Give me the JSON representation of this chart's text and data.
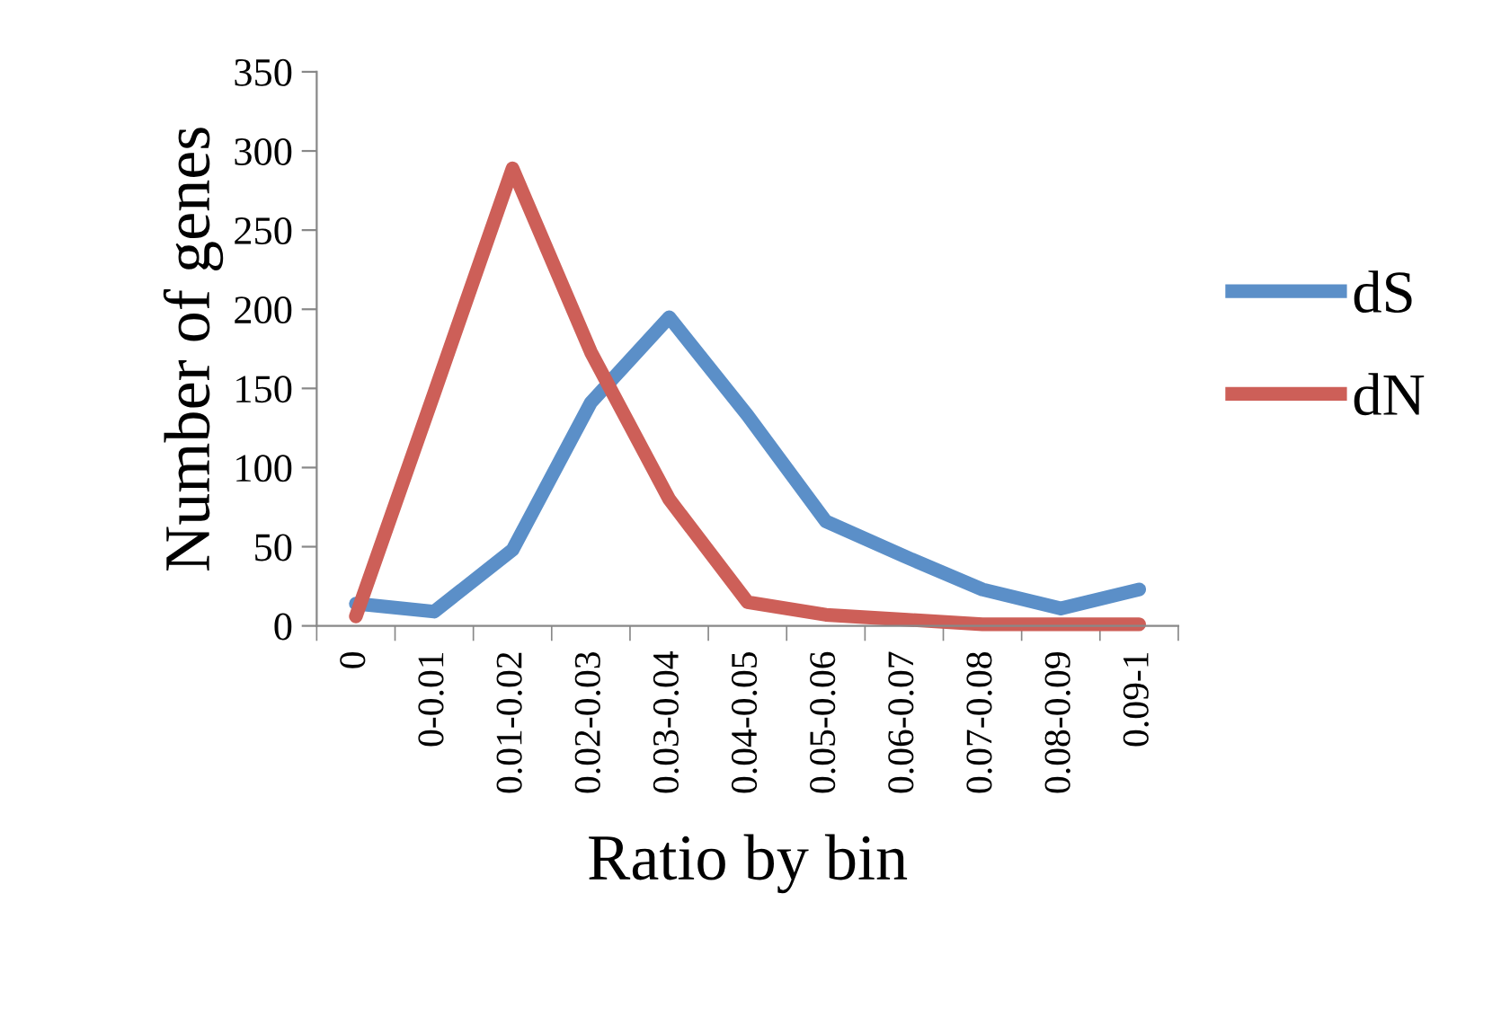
{
  "chart_data": {
    "type": "line",
    "xlabel": "Ratio by bin",
    "ylabel": "Number of genes",
    "categories": [
      "0",
      "0-0.01",
      "0.01-0.02",
      "0.02-0.03",
      "0.03-0.04",
      "0.04-0.05",
      "0.05-0.06",
      "0.06-0.07",
      "0.07-0.08",
      "0.08-0.09",
      "0.09-1"
    ],
    "series": [
      {
        "name": "dS",
        "color": "#5b8fc8",
        "values": [
          14,
          9,
          48,
          141,
          195,
          133,
          66,
          44,
          23,
          11,
          23
        ]
      },
      {
        "name": "dN",
        "color": "#cd5f58",
        "values": [
          6,
          147,
          289,
          173,
          80,
          15,
          7,
          4,
          1,
          1,
          1
        ]
      }
    ],
    "ylim": [
      0,
      350
    ],
    "yticks": [
      0,
      50,
      100,
      150,
      200,
      250,
      300,
      350
    ],
    "grid": false,
    "legend": "right",
    "marker": "none",
    "line_style": "solid"
  }
}
